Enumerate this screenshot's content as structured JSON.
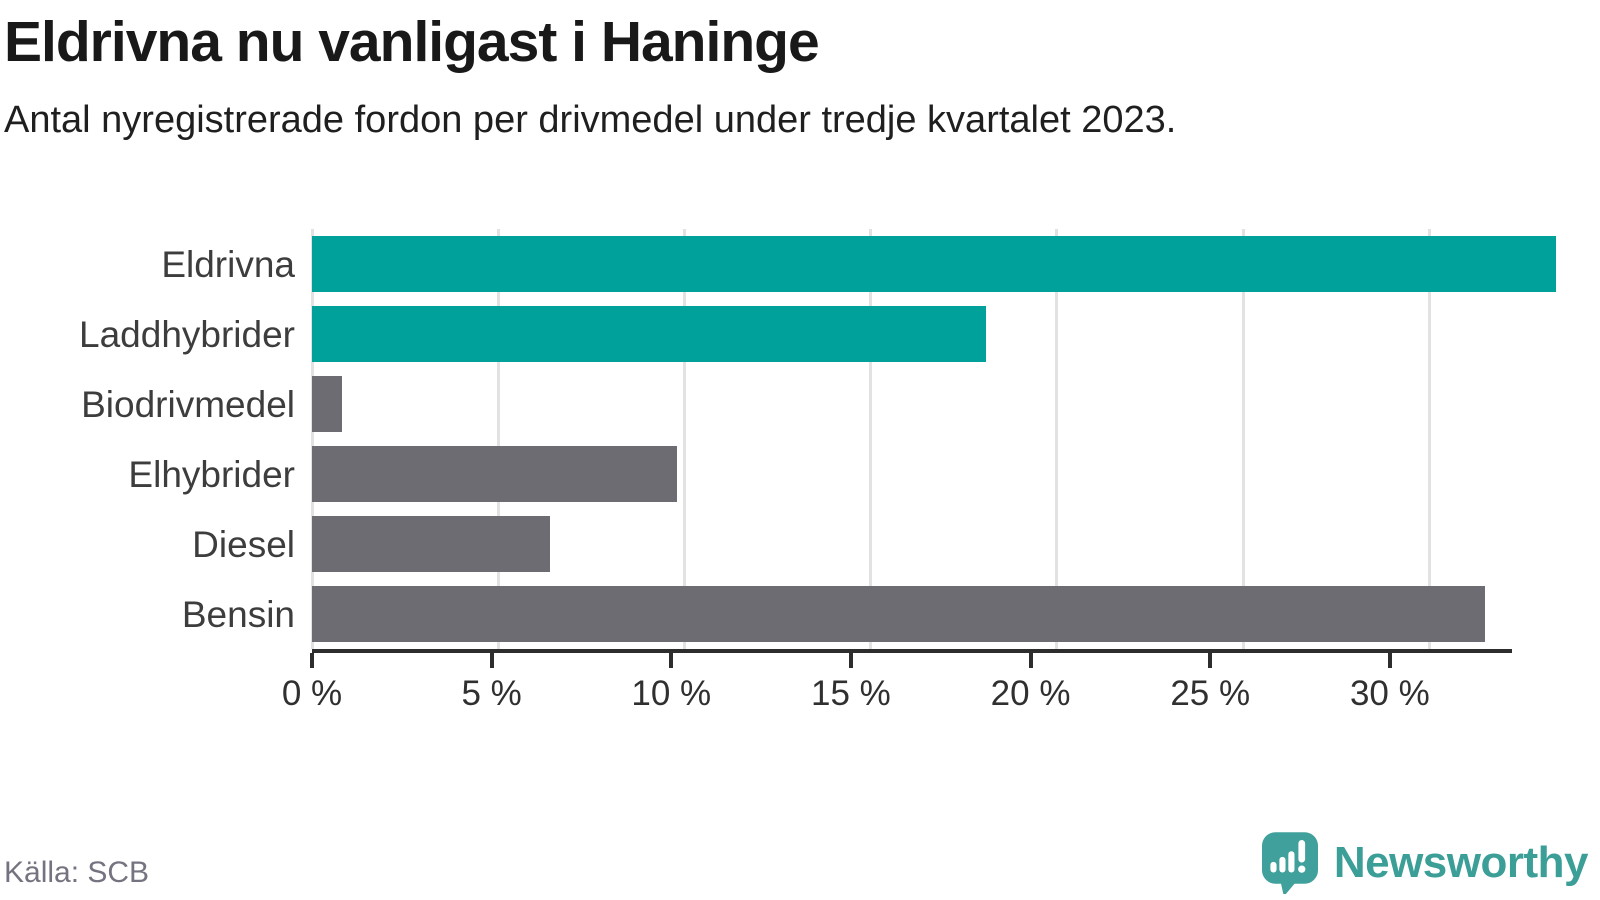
{
  "header": {
    "title": "Eldrivna nu vanligast i Haninge",
    "subtitle": "Antal nyregistrerade fordon per drivmedel under tredje kvartalet 2023."
  },
  "chart_data": {
    "type": "bar",
    "orientation": "horizontal",
    "title": "Eldrivna nu vanligast i Haninge",
    "subtitle": "Antal nyregistrerade fordon per drivmedel under tredje kvartalet 2023.",
    "categories": [
      "Eldrivna",
      "Laddhybrider",
      "Biodrivmedel",
      "Elhybrider",
      "Diesel",
      "Bensin"
    ],
    "values": [
      33.4,
      18.1,
      0.8,
      9.8,
      6.4,
      31.5
    ],
    "unit": "%",
    "colors": [
      "#00a19b",
      "#00a19b",
      "#6e6c73",
      "#6e6c73",
      "#6e6c73",
      "#6e6c73"
    ],
    "xlim": [
      0,
      33.4
    ],
    "xticks": [
      {
        "value": 0,
        "label": "0 %"
      },
      {
        "value": 5,
        "label": "5 %"
      },
      {
        "value": 10,
        "label": "10 %"
      },
      {
        "value": 15,
        "label": "15 %"
      },
      {
        "value": 20,
        "label": "20 %"
      },
      {
        "value": 25,
        "label": "25 %"
      },
      {
        "value": 30,
        "label": "30 %"
      }
    ],
    "grid": true,
    "legend": false
  },
  "footer": {
    "source": "Källa: SCB",
    "brand": "Newsworthy",
    "brand_icon": "newsworthy-bubble-chart-icon"
  },
  "colors": {
    "accent_bar": "#00a19b",
    "muted_bar": "#6e6c73",
    "gridline": "#e2e2e2",
    "axis": "#2d2d2d",
    "brand_teal": "#3b9e97",
    "source_gray": "#767380"
  }
}
